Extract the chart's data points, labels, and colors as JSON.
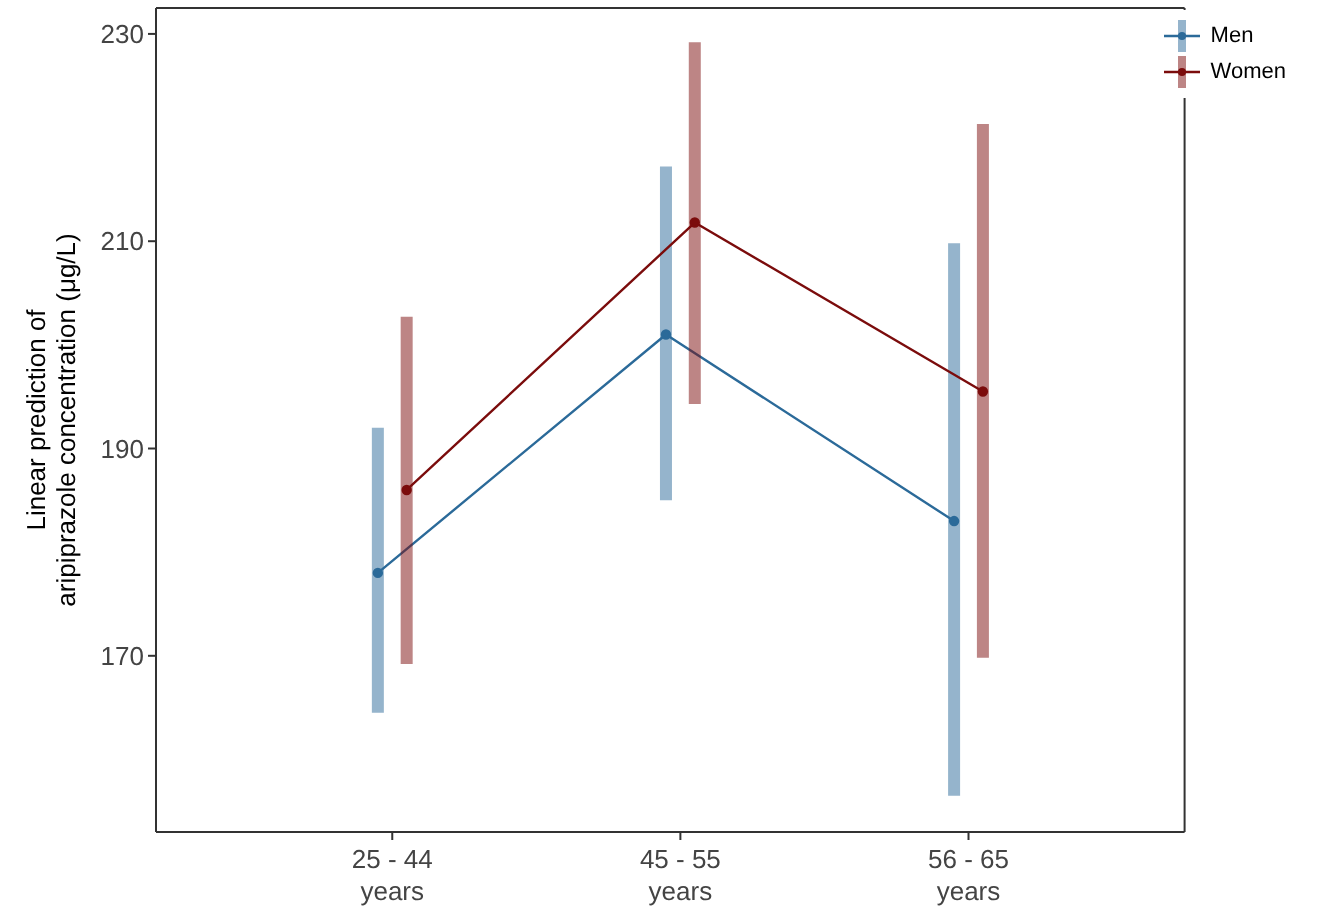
{
  "chart_data": {
    "type": "line",
    "ylabel": "Linear prediction of\naripiprazole concentration (μg/L)",
    "categories": [
      "25 - 44\nyears",
      "45 - 55\nyears",
      "56 - 65\nyears"
    ],
    "series": [
      {
        "name": "Men",
        "color": "#2b6a99",
        "values": [
          178,
          201,
          183
        ],
        "errors": [
          [
            164.5,
            192
          ],
          [
            185,
            217.2
          ],
          [
            156.5,
            209.8
          ]
        ]
      },
      {
        "name": "Women",
        "color": "#7b0c0c",
        "values": [
          186,
          211.8,
          195.5
        ],
        "errors": [
          [
            169.2,
            202.7
          ],
          [
            194.3,
            229.2
          ],
          [
            169.8,
            221.3
          ]
        ]
      }
    ],
    "ylim": [
      153,
      232.5
    ],
    "yticks": [
      170,
      190,
      210,
      230
    ],
    "grid": false,
    "legend": "top right",
    "marker": "circle",
    "line_style": "solid"
  }
}
